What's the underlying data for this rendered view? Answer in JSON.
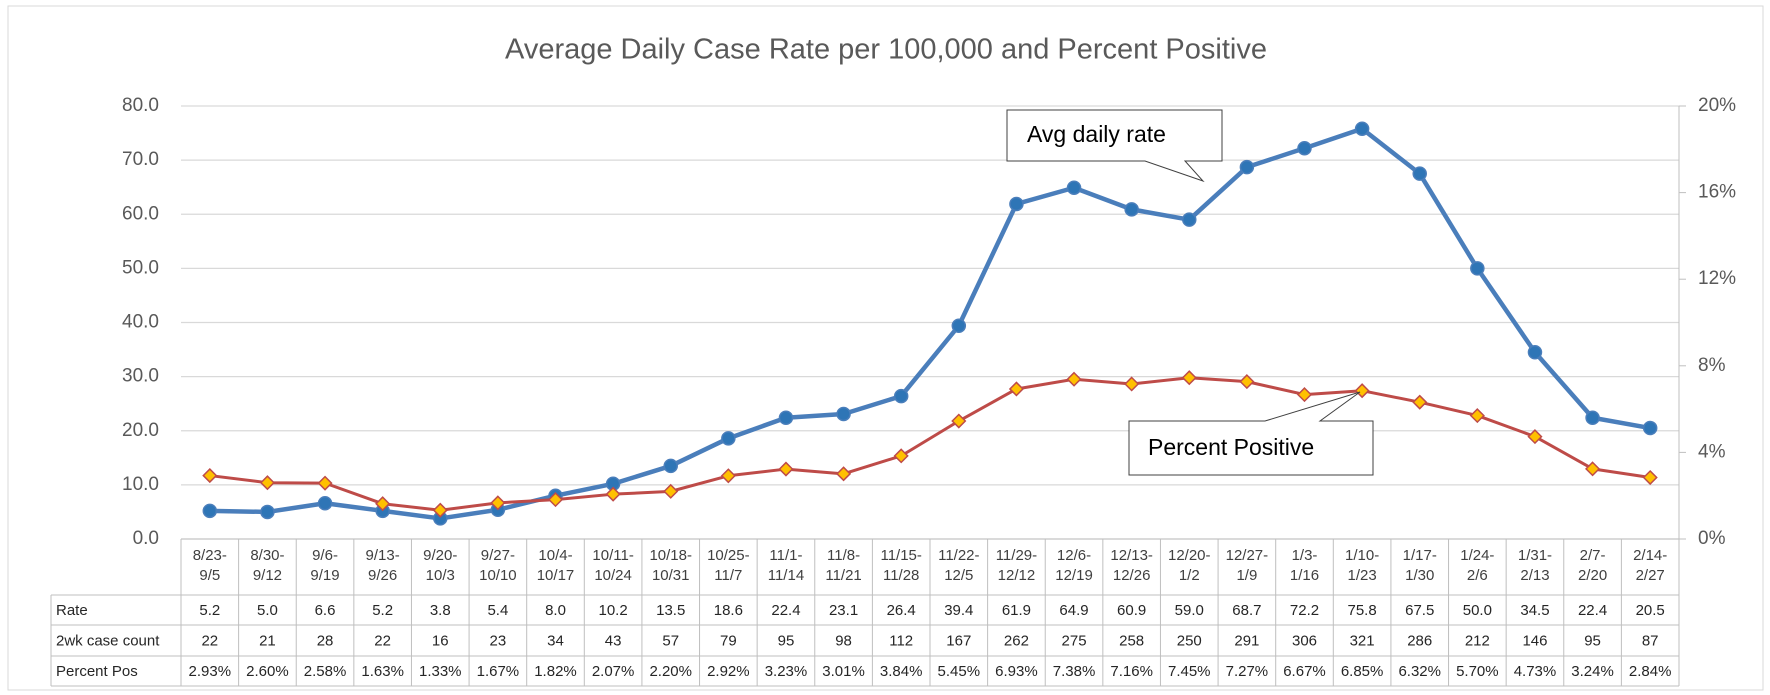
{
  "chart_data": {
    "type": "line",
    "title": "Average Daily Case Rate per 100,000 and Percent Positive",
    "categories": [
      "8/23-9/5",
      "8/30-9/12",
      "9/6-9/19",
      "9/13-9/26",
      "9/20-10/3",
      "9/27-10/10",
      "10/4-10/17",
      "10/11-10/24",
      "10/18-10/31",
      "10/25-11/7",
      "11/1-11/14",
      "11/8-11/21",
      "11/15-11/28",
      "11/22-12/5",
      "11/29-12/12",
      "12/6-12/19",
      "12/13-12/26",
      "12/20-1/2",
      "12/27-1/9",
      "1/3-1/16",
      "1/10-1/23",
      "1/17-1/30",
      "1/24-2/6",
      "1/31-2/13",
      "2/7-2/20",
      "2/14-2/27"
    ],
    "series": [
      {
        "name": "Rate",
        "color": "#4a7ebb",
        "marker_color": "#2e75b6",
        "values": [
          5.2,
          5.0,
          6.6,
          5.2,
          3.8,
          5.4,
          8.0,
          10.2,
          13.5,
          18.6,
          22.4,
          23.1,
          26.4,
          39.4,
          61.9,
          64.9,
          60.9,
          59.0,
          68.7,
          72.2,
          75.8,
          67.5,
          50.0,
          34.5,
          22.4,
          20.5
        ],
        "value_labels": [
          "5.2",
          "5.0",
          "6.6",
          "5.2",
          "3.8",
          "5.4",
          "8.0",
          "10.2",
          "13.5",
          "18.6",
          "22.4",
          "23.1",
          "26.4",
          "39.4",
          "61.9",
          "64.9",
          "60.9",
          "59.0",
          "68.7",
          "72.2",
          "75.8",
          "67.5",
          "50.0",
          "34.5",
          "22.4",
          "20.5"
        ]
      },
      {
        "name": "Percent Pos",
        "color": "#be4b48",
        "marker_color": "#ffc000",
        "axis": "y2",
        "values": [
          2.93,
          2.6,
          2.58,
          1.63,
          1.33,
          1.67,
          1.82,
          2.07,
          2.2,
          2.92,
          3.23,
          3.01,
          3.84,
          5.45,
          6.93,
          7.38,
          7.16,
          7.45,
          7.27,
          6.67,
          6.85,
          6.32,
          5.7,
          4.73,
          3.24,
          2.84
        ],
        "value_labels": [
          "2.93%",
          "2.60%",
          "2.58%",
          "1.63%",
          "1.33%",
          "1.67%",
          "1.82%",
          "2.07%",
          "2.20%",
          "2.92%",
          "3.23%",
          "3.01%",
          "3.84%",
          "5.45%",
          "6.93%",
          "7.38%",
          "7.16%",
          "7.45%",
          "7.27%",
          "6.67%",
          "6.85%",
          "6.32%",
          "5.70%",
          "4.73%",
          "3.24%",
          "2.84%"
        ]
      }
    ],
    "case_counts": {
      "name": "2wk case count",
      "values": [
        22,
        21,
        28,
        22,
        16,
        23,
        34,
        43,
        57,
        79,
        95,
        98,
        112,
        167,
        262,
        275,
        258,
        250,
        291,
        306,
        321,
        286,
        212,
        146,
        95,
        87
      ]
    },
    "annotations": [
      "Avg daily rate",
      "Percent Positive"
    ],
    "ylim": [
      0,
      80
    ],
    "yticks": [
      {
        "value": 0,
        "label": "0.0"
      },
      {
        "value": 10,
        "label": "10.0"
      },
      {
        "value": 20,
        "label": "20.0"
      },
      {
        "value": 30,
        "label": "30.0"
      },
      {
        "value": 40,
        "label": "40.0"
      },
      {
        "value": 50,
        "label": "50.0"
      },
      {
        "value": 60,
        "label": "60.0"
      },
      {
        "value": 70,
        "label": "70.0"
      },
      {
        "value": 80,
        "label": "80.0"
      }
    ],
    "y2lim": [
      0,
      20
    ],
    "y2ticks": [
      {
        "value": 0,
        "label": "0%"
      },
      {
        "value": 4,
        "label": "4%"
      },
      {
        "value": 8,
        "label": "8%"
      },
      {
        "value": 12,
        "label": "12%"
      },
      {
        "value": 16,
        "label": "16%"
      },
      {
        "value": 20,
        "label": "20%"
      }
    ],
    "grid": true
  }
}
